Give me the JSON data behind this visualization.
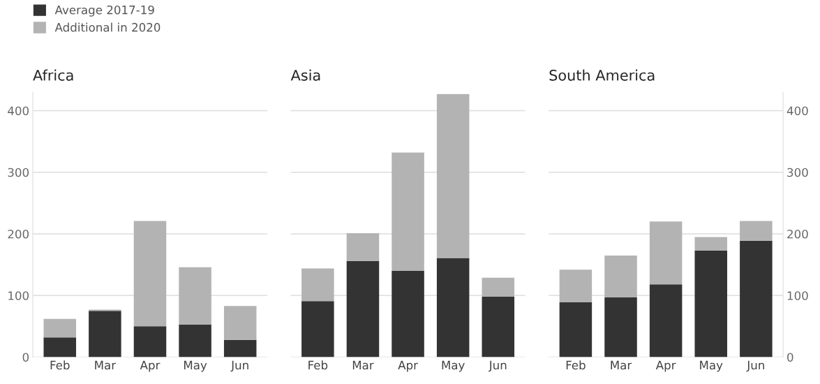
{
  "chart_data": [
    {
      "type": "bar",
      "title": "Africa",
      "categories": [
        "Feb",
        "Mar",
        "Apr",
        "May",
        "Jun"
      ],
      "stacked": true,
      "legend": "top left",
      "grid": "y",
      "tick_labels": "xy",
      "ylim": [
        0,
        430
      ],
      "yticks": [
        0,
        100,
        200,
        300,
        400
      ],
      "series": [
        {
          "name": "Average 2017-19",
          "color": "#333333",
          "values": [
            32,
            75,
            50,
            53,
            28
          ]
        },
        {
          "name": "Additional in 2020",
          "color": "#b3b3b3",
          "values": [
            30,
            2,
            171,
            93,
            55
          ]
        }
      ]
    },
    {
      "type": "bar",
      "title": "Asia",
      "categories": [
        "Feb",
        "Mar",
        "Apr",
        "May",
        "Jun"
      ],
      "stacked": true,
      "grid": "y",
      "tick_labels": "x",
      "ylim": [
        0,
        430
      ],
      "yticks": [
        0,
        100,
        200,
        300,
        400
      ],
      "series": [
        {
          "color": "#333333",
          "values": [
            91,
            156,
            140,
            161,
            98
          ]
        },
        {
          "color": "#b3b3b3",
          "values": [
            53,
            45,
            192,
            266,
            31
          ]
        }
      ]
    },
    {
      "type": "bar",
      "title": "South America",
      "categories": [
        "Feb",
        "Mar",
        "Apr",
        "May",
        "Jun"
      ],
      "stacked": true,
      "grid": "y",
      "tick_labels": "xy",
      "ylim": [
        0,
        430
      ],
      "yticks": [
        0,
        100,
        200,
        300,
        400
      ],
      "series": [
        {
          "color": "#333333",
          "values": [
            89,
            97,
            118,
            173,
            189
          ]
        },
        {
          "color": "#b3b3b3",
          "values": [
            53,
            68,
            102,
            22,
            32
          ]
        }
      ]
    }
  ]
}
